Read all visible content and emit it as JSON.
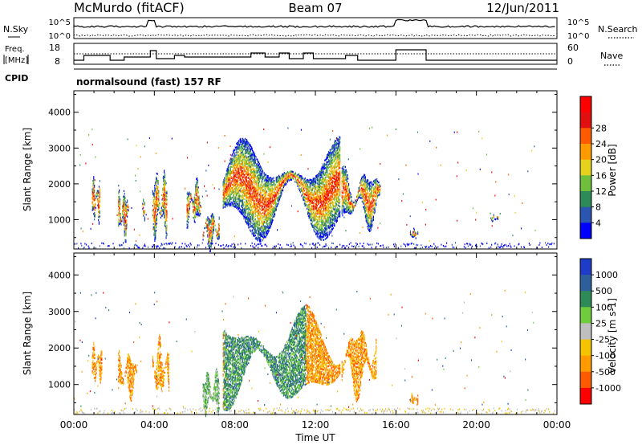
{
  "header": {
    "station": "McMurdo (fitACF)",
    "beam": "Beam 07",
    "date": "12/Jun/2011"
  },
  "summary": {
    "left_labels": [
      "N.Sky",
      "Freq.",
      "[MHz]",
      "CPID"
    ],
    "right_labels": [
      "N.Search",
      "Nave"
    ],
    "nsky_ticks": [
      "10^5",
      "10^0"
    ],
    "nsearch_ticks": [
      "10^5",
      "10^0"
    ],
    "freq_ticks": [
      "18",
      "8"
    ],
    "nave_ticks": [
      "60",
      "0"
    ],
    "cpid_text": "normalsound (fast) 157 RF"
  },
  "colors": {
    "power": [
      "#0000ff",
      "#2a55b0",
      "#2e8b57",
      "#6fbf3c",
      "#e6d21e",
      "#ff9b00",
      "#ff5a00",
      "#e01010",
      "#ff0000"
    ],
    "velocity": [
      "#1f3cc8",
      "#2d5f9a",
      "#2e8b57",
      "#6fcc3c",
      "#bfbfbf",
      "#f5c400",
      "#ff9b00",
      "#ff5a00",
      "#ff0000"
    ]
  },
  "chart_data": [
    {
      "type": "heatmap",
      "panel": "power",
      "xlabel": "",
      "ylabel": "Slant Range [km]",
      "xlim": [
        "00:00",
        "24:00"
      ],
      "ylim": [
        180,
        4600
      ],
      "y_ticks": [
        1000,
        2000,
        3000,
        4000
      ],
      "colorbar_label": "Power [dB]",
      "colorbar_ticks": [
        "4",
        "8",
        "12",
        "16",
        "20",
        "24",
        "28"
      ],
      "echo_regions": [
        {
          "t_start": 0.9,
          "t_end": 1.3,
          "r_low": 1000,
          "r_high": 2100
        },
        {
          "t_start": 2.2,
          "t_end": 2.7,
          "r_low": 500,
          "r_high": 1800
        },
        {
          "t_start": 3.4,
          "t_end": 3.5,
          "r_low": 900,
          "r_high": 1600
        },
        {
          "t_start": 3.9,
          "t_end": 4.6,
          "r_low": 600,
          "r_high": 2200
        },
        {
          "t_start": 5.6,
          "t_end": 6.3,
          "r_low": 900,
          "r_high": 2000
        },
        {
          "t_start": 6.4,
          "t_end": 7.2,
          "r_low": 250,
          "r_high": 1200
        },
        {
          "t_start": 7.4,
          "t_end": 13.2,
          "r_low": 600,
          "r_high": 3000
        },
        {
          "t_start": 13.3,
          "t_end": 15.2,
          "r_low": 900,
          "r_high": 2300
        },
        {
          "t_start": 16.7,
          "t_end": 17.1,
          "r_low": 450,
          "r_high": 700
        },
        {
          "t_start": 20.7,
          "t_end": 21.1,
          "r_low": 950,
          "r_high": 1100
        }
      ]
    },
    {
      "type": "heatmap",
      "panel": "velocity",
      "xlabel": "Time UT",
      "ylabel": "Slant Range [km]",
      "xlim": [
        "00:00",
        "24:00"
      ],
      "ylim": [
        180,
        4600
      ],
      "x_ticks": [
        "00:00",
        "04:00",
        "08:00",
        "12:00",
        "16:00",
        "20:00",
        "00:00"
      ],
      "y_ticks": [
        1000,
        2000,
        3000,
        4000
      ],
      "colorbar_label": "Velocity [m s-1]",
      "colorbar_ticks": [
        "1000",
        "500",
        "100",
        "25",
        "-25",
        "-100",
        "-500",
        "-1000"
      ],
      "echo_regions": [
        {
          "t_start": 0.9,
          "t_end": 1.4,
          "r_low": 1100,
          "r_high": 2000
        },
        {
          "t_start": 2.2,
          "t_end": 3.1,
          "r_low": 700,
          "r_high": 1800
        },
        {
          "t_start": 3.9,
          "t_end": 4.7,
          "r_low": 700,
          "r_high": 2100
        },
        {
          "t_start": 6.4,
          "t_end": 7.2,
          "r_low": 250,
          "r_high": 1300
        },
        {
          "t_start": 7.4,
          "t_end": 13.2,
          "r_low": 600,
          "r_high": 2800
        },
        {
          "t_start": 13.3,
          "t_end": 15.0,
          "r_low": 800,
          "r_high": 2500
        },
        {
          "t_start": 16.7,
          "t_end": 17.1,
          "r_low": 450,
          "r_high": 700
        }
      ]
    }
  ]
}
